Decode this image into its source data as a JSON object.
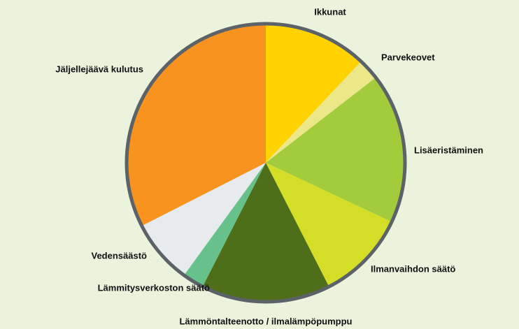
{
  "chart_data": {
    "type": "pie",
    "categories": [
      "Ikkunat",
      "Parvekeovet",
      "Lisäeristäminen",
      "Ilmanvaihdon säätö",
      "Lämmöntalteenotto / ilmalämpöpumppu",
      "Lämmitysverkoston säätö",
      "Vedensäästö",
      "Jäljellejäävä kulutus"
    ],
    "values": [
      12,
      2.5,
      17.5,
      10.5,
      15,
      2.5,
      7.5,
      32.5
    ],
    "colors": [
      "#ffd200",
      "#ece88a",
      "#a3cc3c",
      "#d5de27",
      "#4f6e1a",
      "#66c18a",
      "#e7ebee",
      "#f8931f"
    ]
  }
}
